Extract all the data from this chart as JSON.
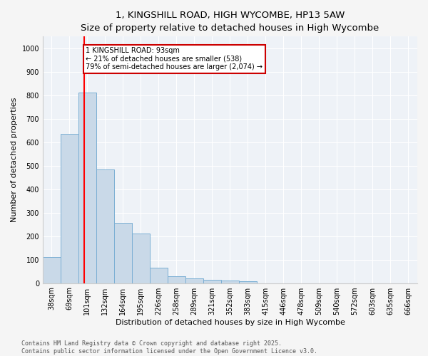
{
  "title": "1, KINGSHILL ROAD, HIGH WYCOMBE, HP13 5AW",
  "subtitle": "Size of property relative to detached houses in High Wycombe",
  "xlabel": "Distribution of detached houses by size in High Wycombe",
  "ylabel": "Number of detached properties",
  "categories": [
    "38sqm",
    "69sqm",
    "101sqm",
    "132sqm",
    "164sqm",
    "195sqm",
    "226sqm",
    "258sqm",
    "289sqm",
    "321sqm",
    "352sqm",
    "383sqm",
    "415sqm",
    "446sqm",
    "478sqm",
    "509sqm",
    "540sqm",
    "572sqm",
    "603sqm",
    "635sqm",
    "666sqm"
  ],
  "values": [
    110,
    635,
    810,
    485,
    258,
    210,
    65,
    28,
    20,
    13,
    10,
    8,
    0,
    0,
    0,
    0,
    0,
    0,
    0,
    0,
    0
  ],
  "bar_color": "#c9d9e8",
  "bar_edge_color": "#7bafd4",
  "red_line_x": 1.82,
  "annotation_text": "1 KINGSHILL ROAD: 93sqm\n← 21% of detached houses are smaller (538)\n79% of semi-detached houses are larger (2,074) →",
  "annotation_box_color": "#ffffff",
  "annotation_box_edge_color": "#cc0000",
  "ylim": [
    0,
    1050
  ],
  "yticks": [
    0,
    100,
    200,
    300,
    400,
    500,
    600,
    700,
    800,
    900,
    1000
  ],
  "background_color": "#eef2f7",
  "grid_color": "#ffffff",
  "footer_line1": "Contains HM Land Registry data © Crown copyright and database right 2025.",
  "footer_line2": "Contains public sector information licensed under the Open Government Licence v3.0.",
  "title_fontsize": 9.5,
  "xlabel_fontsize": 8,
  "ylabel_fontsize": 8,
  "footer_fontsize": 6,
  "annot_fontsize": 7,
  "tick_fontsize": 7
}
